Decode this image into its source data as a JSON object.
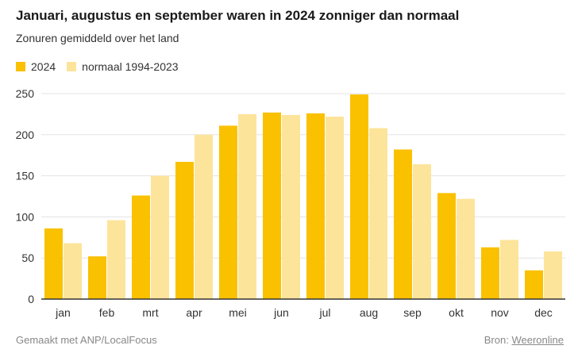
{
  "title": "Januari, augustus en september waren in 2024 zonniger dan normaal",
  "subtitle": "Zonuren gemiddeld over het land",
  "footer": {
    "made_with": "Gemaakt met ANP/LocalFocus",
    "source_label": "Bron:",
    "source_link": "Weeronline"
  },
  "colors": {
    "series_2024": "#FAC100",
    "series_normal": "#FDE49B",
    "grid": "#e3e3e3",
    "axis": "#333333"
  },
  "chart_data": {
    "type": "bar",
    "categories": [
      "jan",
      "feb",
      "mrt",
      "apr",
      "mei",
      "jun",
      "jul",
      "aug",
      "sep",
      "okt",
      "nov",
      "dec"
    ],
    "series": [
      {
        "name": "2024",
        "values": [
          86,
          52,
          126,
          167,
          211,
          227,
          226,
          249,
          182,
          129,
          63,
          35
        ]
      },
      {
        "name": "normaal 1994-2023",
        "values": [
          68,
          96,
          150,
          200,
          225,
          224,
          222,
          208,
          164,
          122,
          72,
          58
        ]
      }
    ],
    "ylim": [
      0,
      250
    ],
    "yticks": [
      0,
      50,
      100,
      150,
      200,
      250
    ],
    "grid": true,
    "legend": "top-left"
  }
}
